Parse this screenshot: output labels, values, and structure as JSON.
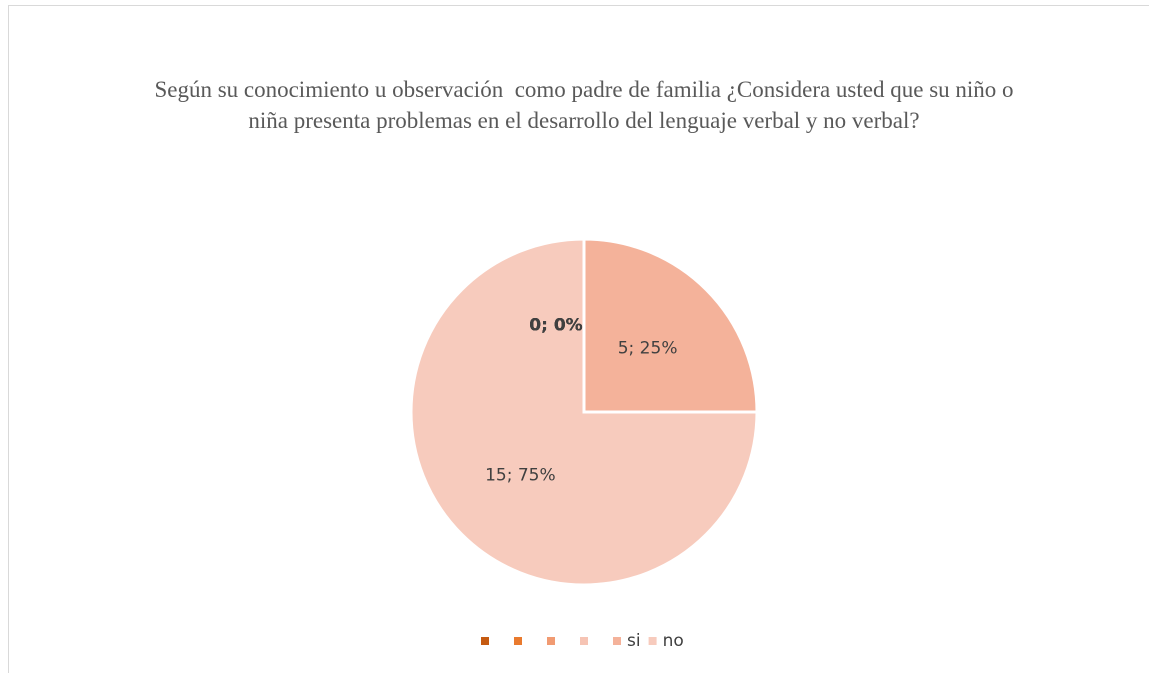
{
  "chart_data": {
    "type": "pie",
    "title": "Según su conocimiento u observación  como padre de familia ¿Considera usted que su niño o niña presenta problemas en el desarrollo del lenguaje verbal y no verbal?",
    "categories": [
      null,
      null,
      null,
      null,
      "si",
      "no"
    ],
    "values": [
      0,
      0,
      0,
      0,
      5,
      15
    ],
    "value_labels": [
      "0; 0%",
      "0; 0%",
      "0; 0%",
      "0; 0%",
      "5; 25%",
      "15; 75%"
    ],
    "colors": [
      "#c55a11",
      "#e97a2e",
      "#f19b72",
      "#f6c4b4",
      "#f4b29a",
      "#f7cbbd"
    ],
    "legend": "bottom"
  }
}
